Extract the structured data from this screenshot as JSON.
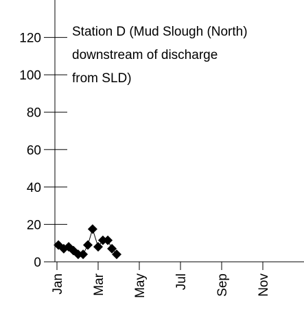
{
  "chart_data": {
    "type": "line",
    "annotation": [
      "Station D (Mud Slough (North)",
      "downstream of discharge",
      "from SLD)"
    ],
    "x": [
      0.07,
      0.33,
      0.57,
      0.8,
      1.03,
      1.27,
      1.5,
      1.73,
      2.0,
      2.23,
      2.47,
      2.67,
      2.9
    ],
    "series": [
      {
        "color": "#000000",
        "values": [
          9,
          7,
          8,
          6,
          4,
          4,
          9,
          17.5,
          8,
          11.5,
          11.5,
          7,
          4
        ]
      }
    ],
    "xlim": [
      -0.1,
      12
    ],
    "xticks": [
      {
        "value": 0,
        "label": "Jan"
      },
      {
        "value": 2,
        "label": "Mar"
      },
      {
        "value": 4,
        "label": "May"
      },
      {
        "value": 6,
        "label": "Jul"
      },
      {
        "value": 8,
        "label": "Sep"
      },
      {
        "value": 10,
        "label": "Nov"
      }
    ],
    "ylim": [
      0,
      140
    ],
    "yticks": [
      0,
      20,
      40,
      60,
      80,
      100,
      120
    ],
    "marker": "diamond"
  }
}
